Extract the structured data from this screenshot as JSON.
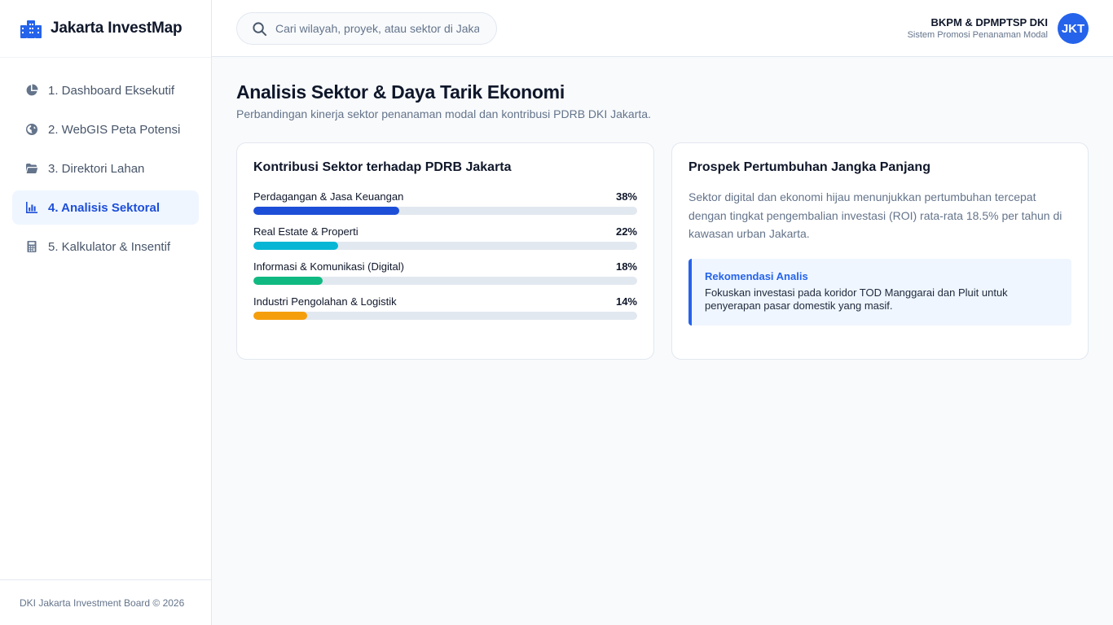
{
  "brand": {
    "name": "Jakarta InvestMap",
    "icon": "city-icon",
    "accent": "#2563eb"
  },
  "sidebar": {
    "items": [
      {
        "label": "1. Dashboard Eksekutif",
        "icon": "pie-chart-icon",
        "active": false
      },
      {
        "label": "2. WebGIS Peta Potensi",
        "icon": "globe-icon",
        "active": false
      },
      {
        "label": "3. Direktori Lahan",
        "icon": "folder-icon",
        "active": false
      },
      {
        "label": "4. Analisis Sektoral",
        "icon": "bar-chart-icon",
        "active": true
      },
      {
        "label": "5. Kalkulator & Insentif",
        "icon": "calculator-icon",
        "active": false
      }
    ],
    "footer": "DKI Jakarta Investment Board © 2026"
  },
  "header": {
    "search_placeholder": "Cari wilayah, proyek, atau sektor di Jakarta...",
    "org": "BKPM & DPMPTSP DKI",
    "subtitle": "Sistem Promosi Penanaman Modal",
    "avatar": "JKT"
  },
  "main": {
    "title": "Analisis Sektor & Daya Tarik Ekonomi",
    "subtitle": "Perbandingan kinerja sektor penanaman modal dan kontribusi PDRB DKI Jakarta."
  },
  "contribution_card": {
    "title": "Kontribusi Sektor terhadap PDRB Jakarta",
    "sectors": [
      {
        "label": "Perdagangan & Jasa Keuangan",
        "pct_label": "38%",
        "value": 38,
        "color": "#1d4ed8"
      },
      {
        "label": "Real Estate & Properti",
        "pct_label": "22%",
        "value": 22,
        "color": "#06b6d4"
      },
      {
        "label": "Informasi & Komunikasi (Digital)",
        "pct_label": "18%",
        "value": 18,
        "color": "#10b981"
      },
      {
        "label": "Industri Pengolahan & Logistik",
        "pct_label": "14%",
        "value": 14,
        "color": "#f59e0b"
      }
    ]
  },
  "prospect_card": {
    "title": "Prospek Pertumbuhan Jangka Panjang",
    "text": "Sektor digital dan ekonomi hijau menunjukkan pertumbuhan tercepat dengan tingkat pengembalian investasi (ROI) rata-rata 18.5% per tahun di kawasan urban Jakarta.",
    "rec_title": "Rekomendasi Analis",
    "rec_text": "Fokuskan investasi pada koridor TOD Manggarai dan Pluit untuk penyerapan pasar domestik yang masif."
  }
}
